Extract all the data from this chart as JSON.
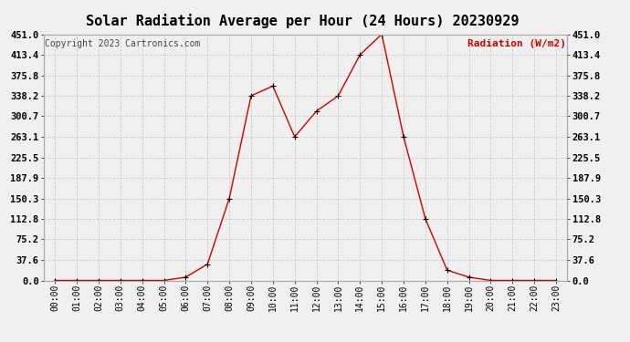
{
  "title": "Solar Radiation Average per Hour (24 Hours) 20230929",
  "copyright_text": "Copyright 2023 Cartronics.com",
  "ylabel": "Radiation (W/m2)",
  "hours": [
    "00:00",
    "01:00",
    "02:00",
    "03:00",
    "04:00",
    "05:00",
    "06:00",
    "07:00",
    "08:00",
    "09:00",
    "10:00",
    "11:00",
    "12:00",
    "13:00",
    "14:00",
    "15:00",
    "16:00",
    "17:00",
    "18:00",
    "19:00",
    "20:00",
    "21:00",
    "22:00",
    "23:00"
  ],
  "values": [
    0.0,
    0.0,
    0.0,
    0.0,
    0.0,
    0.0,
    6.0,
    30.0,
    150.3,
    338.2,
    356.0,
    263.1,
    310.0,
    338.2,
    413.4,
    451.0,
    263.1,
    112.8,
    18.8,
    6.0,
    0.0,
    0.0,
    0.0,
    0.0
  ],
  "yticks": [
    0.0,
    37.6,
    75.2,
    112.8,
    150.3,
    187.9,
    225.5,
    263.1,
    300.7,
    338.2,
    375.8,
    413.4,
    451.0
  ],
  "ymax": 451.0,
  "line_color": "#cc0000",
  "marker_color": "#000000",
  "grid_color": "#cccccc",
  "bg_color": "#f0f0f0",
  "title_fontsize": 11,
  "copyright_fontsize": 7,
  "ylabel_color": "#cc0000",
  "ylabel_fontsize": 8,
  "tick_fontsize": 7.5,
  "xlabel_fontsize": 7
}
